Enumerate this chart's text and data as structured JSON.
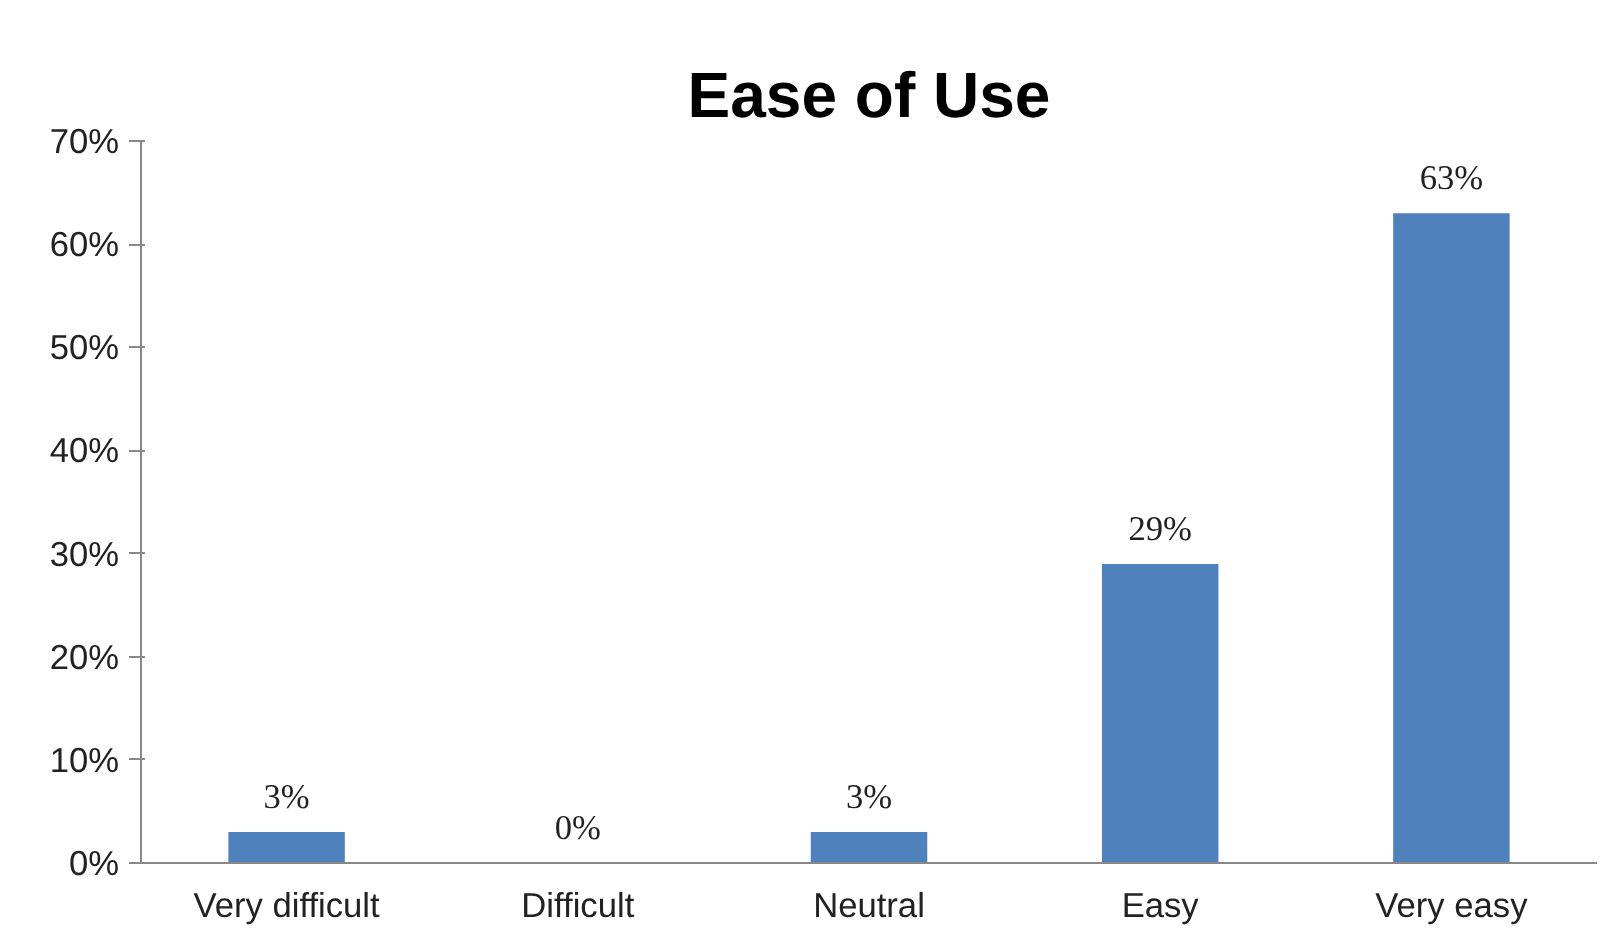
{
  "chart_data": {
    "type": "bar",
    "title": "Ease of Use",
    "categories": [
      "Very difficult",
      "Difficult",
      "Neutral",
      "Easy",
      "Very easy"
    ],
    "values": [
      3,
      0,
      3,
      29,
      63
    ],
    "value_labels": [
      "3%",
      "0%",
      "3%",
      "29%",
      "63%"
    ],
    "color": "#4f81bd",
    "ylim": [
      0,
      70
    ],
    "yticks": [
      {
        "value": 0,
        "label": "0%"
      },
      {
        "value": 10,
        "label": "10%"
      },
      {
        "value": 20,
        "label": "20%"
      },
      {
        "value": 30,
        "label": "30%"
      },
      {
        "value": 40,
        "label": "40%"
      },
      {
        "value": 50,
        "label": "50%"
      },
      {
        "value": 60,
        "label": "60%"
      },
      {
        "value": 70,
        "label": "70%"
      }
    ],
    "grid": false
  }
}
